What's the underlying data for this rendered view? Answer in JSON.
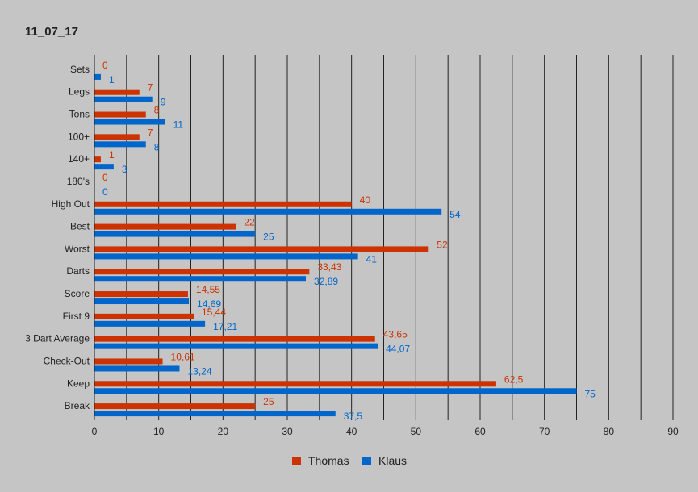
{
  "chart_data": {
    "type": "bar",
    "orientation": "horizontal",
    "title": "11_07_17",
    "xlabel": "",
    "ylabel": "",
    "xlim": [
      0,
      90
    ],
    "x_ticks": [
      0,
      10,
      20,
      30,
      40,
      50,
      60,
      70,
      80,
      90
    ],
    "grid": true,
    "legend_position": "bottom",
    "categories": [
      "Sets",
      "Legs",
      "Tons",
      "100+",
      "140+",
      "180's",
      "High Out",
      "Best",
      "Worst",
      "Darts",
      "Score",
      "First 9",
      "3 Dart Average",
      "Check-Out",
      "Keep",
      "Break"
    ],
    "series": [
      {
        "name": "Thomas",
        "color": "#cc3300",
        "values": [
          0,
          7,
          8,
          7,
          1,
          0,
          40,
          22,
          52,
          33.43,
          14.55,
          15.44,
          43.65,
          10.61,
          62.5,
          25
        ],
        "labels": [
          "0",
          "7",
          "8",
          "7",
          "1",
          "0",
          "40",
          "22",
          "52",
          "33,43",
          "14,55",
          "15,44",
          "43,65",
          "10,61",
          "62,5",
          "25"
        ]
      },
      {
        "name": "Klaus",
        "color": "#0066cc",
        "values": [
          1,
          9,
          11,
          8,
          3,
          0,
          54,
          25,
          41,
          32.89,
          14.69,
          17.21,
          44.07,
          13.24,
          75,
          37.5
        ],
        "labels": [
          "1",
          "9",
          "11",
          "8",
          "3",
          "0",
          "54",
          "25",
          "41",
          "32,89",
          "14,69",
          "17,21",
          "44,07",
          "13,24",
          "75",
          "37,5"
        ]
      }
    ]
  }
}
